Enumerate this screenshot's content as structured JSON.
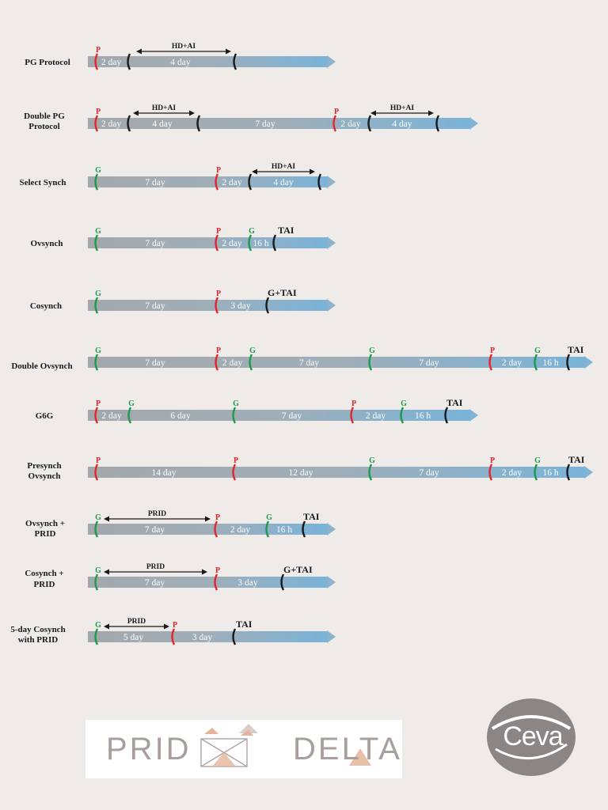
{
  "protocols": [
    {
      "name": "PG Protocol",
      "segments": [
        "2 day",
        "4 day"
      ],
      "markers": [
        {
          "t": "P"
        }
      ],
      "ranges": [
        {
          "label": "HD+AI"
        }
      ],
      "events": []
    },
    {
      "name": "Double PG Protocol",
      "segments": [
        "2 day",
        "4 day",
        "7 day",
        "2 day",
        "4 day"
      ],
      "markers": [
        {
          "t": "P"
        },
        {
          "t": "P"
        }
      ],
      "ranges": [
        {
          "label": "HD+AI"
        },
        {
          "label": "HD+AI"
        }
      ],
      "events": []
    },
    {
      "name": "Select Synch",
      "segments": [
        "7 day",
        "2 day",
        "4 day"
      ],
      "markers": [
        {
          "t": "G"
        },
        {
          "t": "P"
        }
      ],
      "ranges": [
        {
          "label": "HD+AI"
        }
      ],
      "events": []
    },
    {
      "name": "Ovsynch",
      "segments": [
        "7 day",
        "2 day",
        "16 h"
      ],
      "markers": [
        {
          "t": "G"
        },
        {
          "t": "P"
        },
        {
          "t": "G"
        }
      ],
      "ranges": [],
      "events": [
        "TAI"
      ]
    },
    {
      "name": "Cosynch",
      "segments": [
        "7 day",
        "3 day"
      ],
      "markers": [
        {
          "t": "G"
        },
        {
          "t": "P"
        }
      ],
      "ranges": [],
      "events": [
        "G+TAI"
      ]
    },
    {
      "name": "Double Ovsynch",
      "segments": [
        "7 day",
        "2 day",
        "7 day",
        "7 day",
        "2 day",
        "16 h"
      ],
      "markers": [
        {
          "t": "G"
        },
        {
          "t": "P"
        },
        {
          "t": "G"
        },
        {
          "t": "G"
        },
        {
          "t": "P"
        },
        {
          "t": "G"
        }
      ],
      "ranges": [],
      "events": [
        "TAI"
      ]
    },
    {
      "name": "G6G",
      "segments": [
        "2 day",
        "6 day",
        "7 day",
        "2 day",
        "16 h"
      ],
      "markers": [
        {
          "t": "P"
        },
        {
          "t": "G"
        },
        {
          "t": "G"
        },
        {
          "t": "P"
        },
        {
          "t": "G"
        }
      ],
      "ranges": [],
      "events": [
        "TAI"
      ]
    },
    {
      "name": "Presynch Ovsynch",
      "segments": [
        "14 day",
        "12 day",
        "7 day",
        "2 day",
        "16 h"
      ],
      "markers": [
        {
          "t": "P"
        },
        {
          "t": "P"
        },
        {
          "t": "G"
        },
        {
          "t": "P"
        },
        {
          "t": "G"
        }
      ],
      "ranges": [],
      "events": [
        "TAI"
      ]
    },
    {
      "name": "Ovsynch + PRID",
      "segments": [
        "7 day",
        "2 day",
        "16 h"
      ],
      "markers": [
        {
          "t": "G"
        },
        {
          "t": "P"
        },
        {
          "t": "G"
        }
      ],
      "ranges": [
        {
          "label": "PRID"
        }
      ],
      "events": [
        "TAI"
      ]
    },
    {
      "name": "Cosynch + PRID",
      "segments": [
        "7 day",
        "3 day"
      ],
      "markers": [
        {
          "t": "G"
        },
        {
          "t": "P"
        }
      ],
      "ranges": [
        {
          "label": "PRID"
        }
      ],
      "events": [
        "G+TAI"
      ]
    },
    {
      "name": "5-day Cosynch with PRID",
      "segments": [
        "5 day",
        "3 day"
      ],
      "markers": [
        {
          "t": "G"
        },
        {
          "t": "P"
        }
      ],
      "ranges": [
        {
          "label": "PRID"
        }
      ],
      "events": [
        "TAI"
      ]
    }
  ],
  "colors": {
    "bar_gray": "#a2aab0",
    "bar_blue": "#7fb4d6",
    "marker_p": "#e3262b",
    "marker_g": "#1f9a4c",
    "bracket": "#1a1a1a",
    "prid_accent": "#e5b49a"
  },
  "logos": {
    "prid": {
      "left": "PRID",
      "right": "DELTA"
    },
    "ceva": {
      "text": "Ceva"
    }
  }
}
